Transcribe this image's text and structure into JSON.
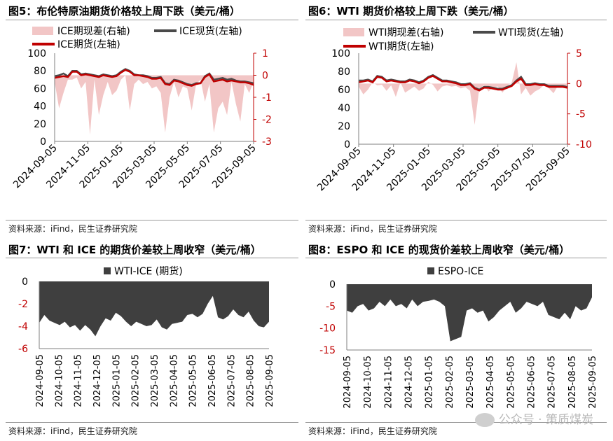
{
  "panels": {
    "p5": {
      "title": "图5：布伦特原油期货价格较上周下跌（美元/桶）",
      "source": "资料来源：iFind，民生证券研究院"
    },
    "p6": {
      "title": "图6：WTI 期货价格较上周下跌（美元/桶）",
      "source": "资料来源：iFind，民生证券研究院"
    },
    "p7": {
      "title": "图7：WTI 和 ICE 的期货价差较上周收窄（美元/桶）",
      "source": "资料来源：iFind，民生证券研究院"
    },
    "p8": {
      "title": "图8：ESPO 和 ICE 的现货价差较上周收窄（美元/桶）",
      "source": "资料来源：iFind，民生证券研究院"
    }
  },
  "watermark": "公众号 · 策质煤炭",
  "colors": {
    "spread_fill": "#f2c6c6",
    "spot_line": "#4a4a4a",
    "futures_line": "#c00000",
    "area_fill": "#3f3f3f",
    "axis_red": "#c00000"
  },
  "chart_data": [
    {
      "id": "fig5",
      "type": "line",
      "legend": [
        "ICE期现差(右轴)",
        "ICE现货(左轴)",
        "ICE期货(左轴)"
      ],
      "x_ticks": [
        "2024-09-05",
        "2024-11-05",
        "2025-01-05",
        "2025-03-05",
        "2025-05-05",
        "2025-07-05",
        "2025-09-05"
      ],
      "ylim": [
        0,
        100
      ],
      "y_ticks": [
        0,
        20,
        40,
        60,
        80,
        100
      ],
      "y2lim": [
        -3,
        1
      ],
      "y2_ticks": [
        -3,
        -2,
        -1,
        0,
        1
      ],
      "series": [
        {
          "name": "ICE现货(左轴)",
          "axis": "left",
          "values": [
            74,
            75,
            77,
            74,
            80,
            80,
            76,
            77,
            76,
            75,
            74,
            76,
            75,
            74,
            75,
            79,
            82,
            80,
            76,
            75,
            75,
            74,
            72,
            72,
            73,
            66,
            65,
            70,
            69,
            67,
            65,
            64,
            66,
            66,
            74,
            77,
            70,
            71,
            72,
            70,
            71,
            69,
            68,
            68,
            67,
            66
          ]
        },
        {
          "name": "ICE期货(左轴)",
          "axis": "left",
          "values": [
            72,
            73,
            74,
            73,
            79,
            79,
            75,
            76,
            75,
            74,
            73,
            75,
            74,
            73,
            74,
            78,
            81,
            79,
            75,
            75,
            74,
            73,
            71,
            71,
            72,
            65,
            64,
            69,
            68,
            66,
            64,
            63,
            65,
            66,
            73,
            76,
            68,
            69,
            70,
            68,
            69,
            68,
            67,
            67,
            66,
            64
          ]
        },
        {
          "name": "ICE期现差(右轴)",
          "axis": "right",
          "values": [
            -0.3,
            -1.5,
            -0.8,
            -0.2,
            -0.2,
            -0.1,
            -0.6,
            -0.3,
            -2.7,
            -0.2,
            -1.8,
            -0.9,
            -0.3,
            -0.9,
            -0.7,
            -0.2,
            0,
            -1.6,
            -0.4,
            -0.2,
            -0.4,
            -0.3,
            -0.6,
            -0.5,
            -0.8,
            -2.6,
            -1.0,
            -0.3,
            -1.0,
            -0.5,
            -0.6,
            -1.6,
            -0.4,
            -0.2,
            -1.2,
            -0.4,
            -2.6,
            -1.5,
            -1.2,
            -1.8,
            -0.3,
            -1.3,
            -2.1,
            -0.4,
            -0.8,
            -0.3
          ]
        }
      ]
    },
    {
      "id": "fig6",
      "type": "line",
      "legend": [
        "WTI期现差(右轴)",
        "WTI现货(左轴)",
        "WTI期货(左轴)"
      ],
      "x_ticks": [
        "2024-09-05",
        "2024-11-05",
        "2025-01-05",
        "2025-03-05",
        "2025-05-05",
        "2025-07-05",
        "2025-09-05"
      ],
      "ylim": [
        0,
        100
      ],
      "y_ticks": [
        0,
        20,
        40,
        60,
        80,
        100
      ],
      "y2lim": [
        -10,
        5
      ],
      "y2_ticks": [
        -10,
        -5,
        0,
        5
      ],
      "series": [
        {
          "name": "WTI现货(左轴)",
          "axis": "left",
          "values": [
            70,
            70,
            71,
            69,
            75,
            74,
            70,
            71,
            70,
            69,
            69,
            71,
            70,
            68,
            70,
            74,
            76,
            73,
            70,
            70,
            69,
            68,
            66,
            66,
            67,
            62,
            60,
            63,
            63,
            62,
            61,
            61,
            63,
            65,
            70,
            74,
            66,
            66,
            67,
            66,
            66,
            64,
            64,
            64,
            64,
            63
          ]
        },
        {
          "name": "WTI期货(左轴)",
          "axis": "left",
          "values": [
            68,
            69,
            70,
            68,
            74,
            73,
            69,
            70,
            69,
            68,
            68,
            70,
            69,
            67,
            69,
            73,
            75,
            72,
            69,
            69,
            68,
            67,
            65,
            65,
            66,
            61,
            59,
            62,
            62,
            61,
            60,
            60,
            62,
            64,
            69,
            72,
            65,
            65,
            66,
            65,
            65,
            63,
            63,
            63,
            63,
            62
          ]
        },
        {
          "name": "WTI期现差(右轴)",
          "axis": "right",
          "values": [
            -0.5,
            -1.8,
            -1,
            0.2,
            -0.3,
            -0.2,
            -1.2,
            -0.3,
            -2.2,
            0.2,
            -1.5,
            -1.0,
            -0.5,
            -1.2,
            -0.8,
            0.3,
            -0.2,
            -1.3,
            -0.5,
            -0.3,
            -0.5,
            -0.4,
            -0.8,
            -0.6,
            -1.2,
            -6.8,
            -0.8,
            -0.3,
            -1.3,
            -0.6,
            -0.5,
            -1.5,
            -0.4,
            0.2,
            3.5,
            -1.8,
            -0.7,
            -2.0,
            -1.3,
            -0.9,
            -0.2,
            -0.8,
            -1.6,
            -0.3,
            -0.6,
            -0.2
          ]
        }
      ]
    },
    {
      "id": "fig7",
      "type": "area",
      "legend": [
        "WTI-ICE (期货)"
      ],
      "x_ticks": [
        "2024-09-05",
        "2024-10-05",
        "2024-11-05",
        "2024-12-05",
        "2025-01-05",
        "2025-02-05",
        "2025-03-05",
        "2025-04-05",
        "2025-05-05",
        "2025-06-05",
        "2025-07-05",
        "2025-08-05",
        "2025-09-05"
      ],
      "ylim": [
        -6,
        0
      ],
      "y_ticks": [
        0,
        -2,
        -4,
        -6
      ],
      "series": [
        {
          "name": "WTI-ICE (期货)",
          "values": [
            -3.7,
            -3.0,
            -3.5,
            -3.7,
            -3.9,
            -3.6,
            -4.1,
            -3.9,
            -4.4,
            -3.9,
            -4.3,
            -4.9,
            -4.0,
            -3.3,
            -3.5,
            -2.8,
            -3.1,
            -3.6,
            -4.0,
            -3.6,
            -3.8,
            -4.0,
            -3.9,
            -3.4,
            -4.1,
            -4.3,
            -3.8,
            -3.7,
            -3.6,
            -3.0,
            -2.9,
            -3.2,
            -2.9,
            -2.0,
            -1.3,
            -3.2,
            -3.4,
            -3.1,
            -2.5,
            -3.0,
            -3.2,
            -2.7,
            -3.5,
            -4.0,
            -4.1,
            -3.6
          ]
        }
      ]
    },
    {
      "id": "fig8",
      "type": "area",
      "legend": [
        "ESPO-ICE"
      ],
      "x_ticks": [
        "2024-09-05",
        "2024-10-05",
        "2024-11-05",
        "2024-12-05",
        "2025-01-05",
        "2025-02-05",
        "2025-03-05",
        "2025-04-05",
        "2025-05-05",
        "2025-06-05",
        "2025-07-05",
        "2025-08-05",
        "2025-09-05"
      ],
      "ylim": [
        -15,
        0
      ],
      "y_ticks": [
        0,
        -5,
        -10,
        -15
      ],
      "series": [
        {
          "name": "ESPO-ICE",
          "values": [
            -6,
            -6.5,
            -5,
            -4.5,
            -6,
            -5.5,
            -4,
            -5,
            -3.5,
            -5,
            -4.5,
            -5.5,
            -3.5,
            -5,
            -4,
            -3.8,
            -3.5,
            -4,
            -5,
            -13,
            -12.5,
            -12,
            -6,
            -5.5,
            -6.5,
            -6,
            -8.5,
            -7.5,
            -6,
            -5,
            -4,
            -6.5,
            -5.5,
            -4,
            -4.5,
            -5,
            -4,
            -7,
            -7.5,
            -8,
            -6.5,
            -8,
            -5,
            -6,
            -5.5,
            -3
          ]
        }
      ]
    }
  ]
}
